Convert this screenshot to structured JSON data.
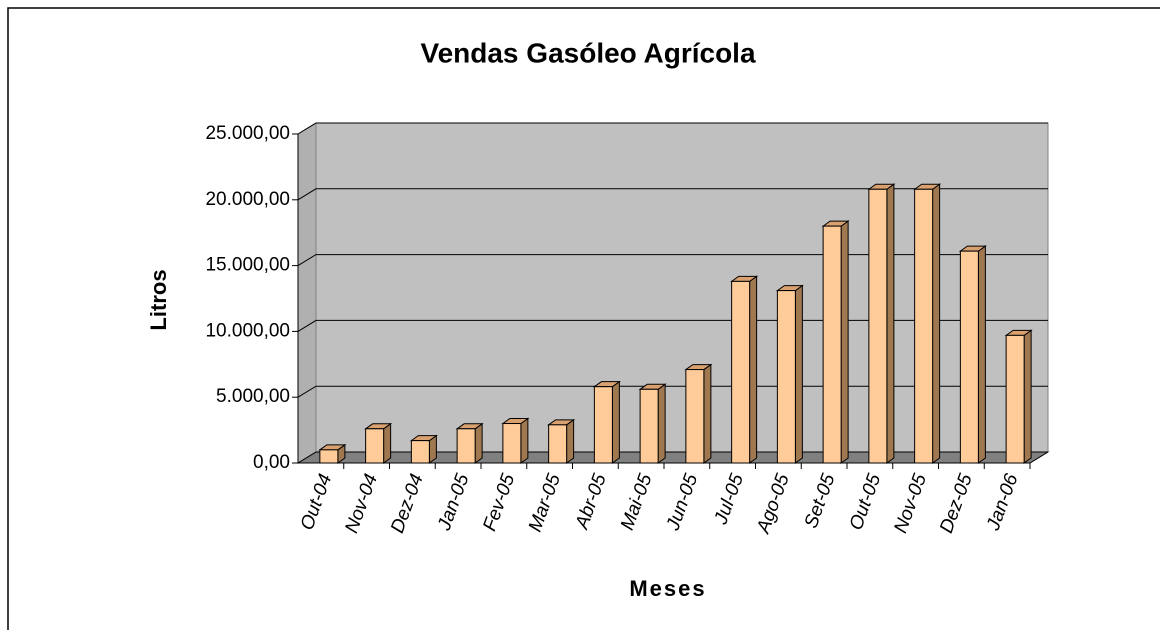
{
  "chart_data": {
    "type": "bar3d",
    "title": "Vendas Gasóleo Agrícola",
    "x_label": "Meses",
    "y_label": "Litros",
    "categories": [
      "Out-04",
      "Nov-04",
      "Dez-04",
      "Jan-05",
      "Fev-05",
      "Mar-05",
      "Abr-05",
      "Mai-05",
      "Jun-05",
      "Jul-05",
      "Ago-05",
      "Set-05",
      "Out-05",
      "Nov-05",
      "Dez-05",
      "Jan-06"
    ],
    "values": [
      1000,
      2600,
      1700,
      2600,
      3000,
      2900,
      5800,
      5600,
      7100,
      13800,
      13100,
      18000,
      20800,
      20800,
      16100,
      9700
    ],
    "color": "#ffcc99",
    "ylim": [
      0,
      25000
    ],
    "yticks": [
      {
        "value": 0,
        "label": "0,00"
      },
      {
        "value": 5000,
        "label": "5.000,00"
      },
      {
        "value": 10000,
        "label": "10.000,00"
      },
      {
        "value": 15000,
        "label": "15.000,00"
      },
      {
        "value": 20000,
        "label": "20.000,00"
      },
      {
        "value": 25000,
        "label": "25.000,00"
      }
    ],
    "grid": true
  }
}
